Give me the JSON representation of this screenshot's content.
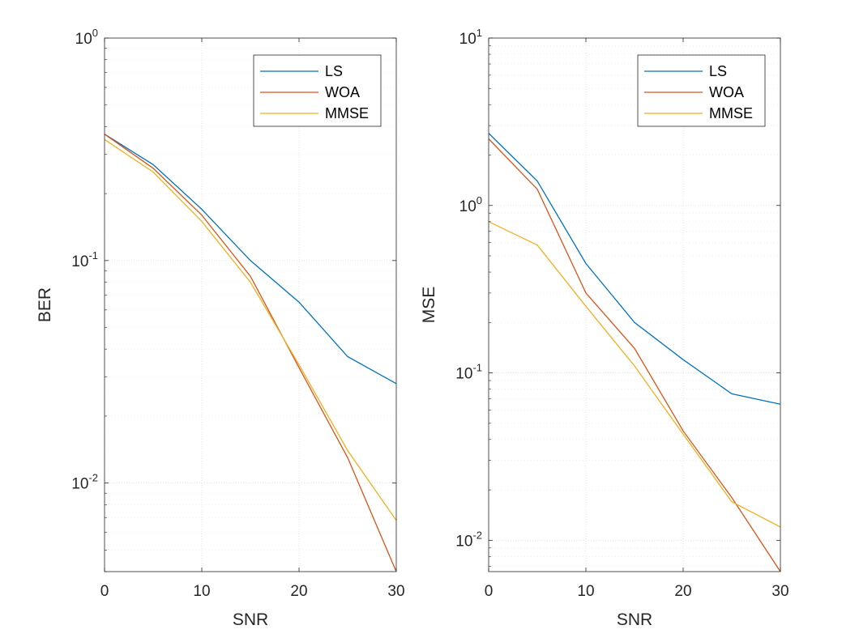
{
  "chart_data": [
    {
      "type": "line",
      "xlabel": "SNR",
      "ylabel": "BER",
      "yscale": "log",
      "xlim": [
        0,
        30
      ],
      "ylim": [
        0.004,
        1
      ],
      "xticks": [
        "0",
        "10",
        "20",
        "30"
      ],
      "yticks": [
        {
          "base": "10",
          "exp": "0"
        },
        {
          "base": "10",
          "exp": "-1"
        },
        {
          "base": "10",
          "exp": "-2"
        }
      ],
      "grid": true,
      "legend_position": "top-right",
      "x": [
        0,
        5,
        10,
        15,
        20,
        25,
        30
      ],
      "series": [
        {
          "name": "LS",
          "color": "#0072BD",
          "values": [
            0.37,
            0.27,
            0.17,
            0.1,
            0.065,
            0.037,
            0.028
          ]
        },
        {
          "name": "WOA",
          "color": "#D95319",
          "values": [
            0.37,
            0.26,
            0.16,
            0.085,
            0.033,
            0.013,
            0.004
          ]
        },
        {
          "name": "MMSE",
          "color": "#EDB120",
          "values": [
            0.35,
            0.25,
            0.15,
            0.08,
            0.034,
            0.014,
            0.0068
          ]
        }
      ]
    },
    {
      "type": "line",
      "xlabel": "SNR",
      "ylabel": "MSE",
      "yscale": "log",
      "xlim": [
        0,
        30
      ],
      "ylim": [
        0.0065,
        10
      ],
      "xticks": [
        "0",
        "10",
        "20",
        "30"
      ],
      "yticks": [
        {
          "base": "10",
          "exp": "1"
        },
        {
          "base": "10",
          "exp": "0"
        },
        {
          "base": "10",
          "exp": "-1"
        },
        {
          "base": "10",
          "exp": "-2"
        }
      ],
      "grid": true,
      "legend_position": "top-right",
      "x": [
        0,
        5,
        10,
        15,
        20,
        25,
        30
      ],
      "series": [
        {
          "name": "LS",
          "color": "#0072BD",
          "values": [
            2.7,
            1.4,
            0.45,
            0.2,
            0.12,
            0.075,
            0.065
          ]
        },
        {
          "name": "WOA",
          "color": "#D95319",
          "values": [
            2.5,
            1.25,
            0.3,
            0.14,
            0.045,
            0.018,
            0.0065
          ]
        },
        {
          "name": "MMSE",
          "color": "#EDB120",
          "values": [
            0.8,
            0.58,
            0.25,
            0.11,
            0.043,
            0.017,
            0.012
          ]
        }
      ]
    }
  ]
}
